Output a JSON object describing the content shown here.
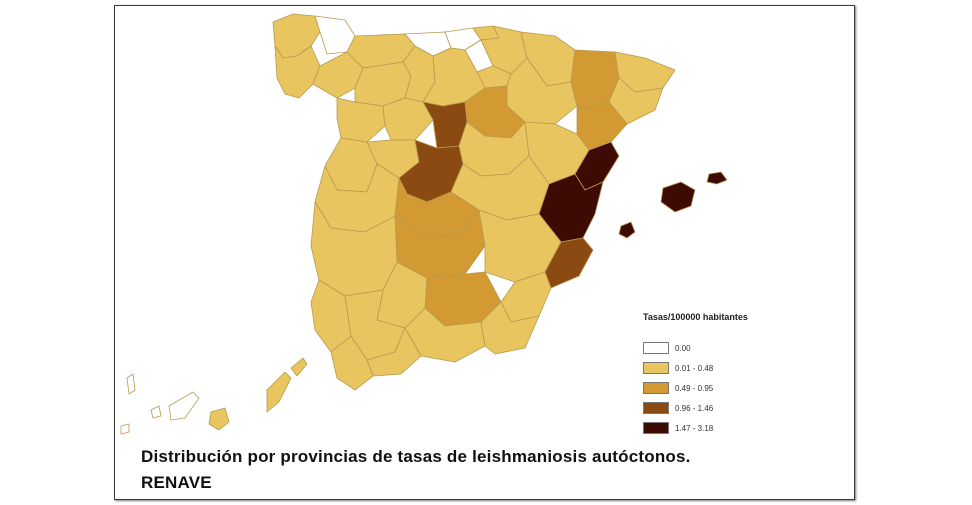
{
  "legend": {
    "title": "Tasas/100000 habitantes",
    "items": [
      {
        "label": "0.00",
        "color": "#ffffff"
      },
      {
        "label": "0.01 - 0.48",
        "color": "#e8c55f"
      },
      {
        "label": "0.49 - 0.95",
        "color": "#d39a34"
      },
      {
        "label": "0.96 - 1.46",
        "color": "#8a4a12"
      },
      {
        "label": "1.47 - 3.18",
        "color": "#3d0a04"
      }
    ]
  },
  "caption": {
    "line1": "Distribución por provincias de tasas de leishmaniosis autóctonos.",
    "line2": "RENAVE"
  },
  "map": {
    "region": "Spain",
    "colors": {
      "light": "#e8c55f",
      "medium": "#d39a34",
      "dark": "#8a4a12",
      "darkest": "#3d0a04",
      "none": "#ffffff",
      "border": "#b89a50"
    }
  }
}
